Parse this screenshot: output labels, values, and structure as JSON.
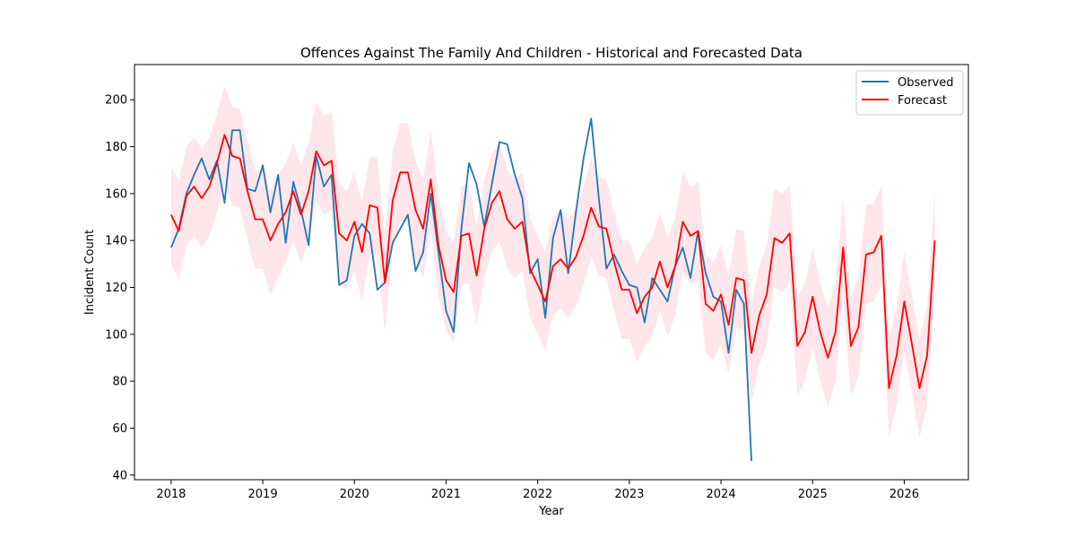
{
  "chart_data": {
    "type": "line",
    "title": "Offences Against The Family And Children - Historical and Forecasted Data",
    "xlabel": "Year",
    "ylabel": "Incident Count",
    "xlim": [
      2017.6,
      2026.7
    ],
    "ylim": [
      38,
      215
    ],
    "x_ticks": [
      2018,
      2019,
      2020,
      2021,
      2022,
      2023,
      2024,
      2025,
      2026
    ],
    "x_tick_labels": [
      "2018",
      "2019",
      "2020",
      "2021",
      "2022",
      "2023",
      "2024",
      "2025",
      "2026"
    ],
    "y_ticks": [
      40,
      60,
      80,
      100,
      120,
      140,
      160,
      180,
      200
    ],
    "y_tick_labels": [
      "40",
      "60",
      "80",
      "100",
      "120",
      "140",
      "160",
      "180",
      "200"
    ],
    "grid": false,
    "legend": "top-right",
    "colors": {
      "observed": "#1f77b4",
      "forecast": "#ff0000",
      "band": "#ffc0cb"
    },
    "series": [
      {
        "name": "Observed",
        "color": "#1f77b4",
        "x": [
          2018.0,
          2018.083,
          2018.167,
          2018.25,
          2018.333,
          2018.417,
          2018.5,
          2018.583,
          2018.667,
          2018.75,
          2018.833,
          2018.917,
          2019.0,
          2019.083,
          2019.167,
          2019.25,
          2019.333,
          2019.417,
          2019.5,
          2019.583,
          2019.667,
          2019.75,
          2019.833,
          2019.917,
          2020.0,
          2020.083,
          2020.167,
          2020.25,
          2020.333,
          2020.417,
          2020.5,
          2020.583,
          2020.667,
          2020.75,
          2020.833,
          2020.917,
          2021.0,
          2021.083,
          2021.167,
          2021.25,
          2021.333,
          2021.417,
          2021.5,
          2021.583,
          2021.667,
          2021.75,
          2021.833,
          2021.917,
          2022.0,
          2022.083,
          2022.167,
          2022.25,
          2022.333,
          2022.417,
          2022.5,
          2022.583,
          2022.667,
          2022.75,
          2022.833,
          2022.917,
          2023.0,
          2023.083,
          2023.167,
          2023.25,
          2023.333,
          2023.417,
          2023.5,
          2023.583,
          2023.667,
          2023.75,
          2023.833,
          2023.917,
          2024.0,
          2024.083,
          2024.167,
          2024.25,
          2024.333
        ],
        "y": [
          137,
          145,
          160,
          168,
          175,
          166,
          174,
          156,
          187,
          187,
          162,
          161,
          172,
          152,
          168,
          139,
          165,
          153,
          138,
          176,
          163,
          168,
          121,
          123,
          142,
          147,
          143,
          119,
          122,
          139,
          145,
          151,
          127,
          135,
          160,
          135,
          110,
          101,
          145,
          173,
          164,
          146,
          164,
          182,
          181,
          168,
          158,
          126,
          132,
          107,
          141,
          153,
          126,
          152,
          175,
          192,
          158,
          128,
          134,
          127,
          121,
          120,
          105,
          124,
          119,
          114,
          129,
          137,
          124,
          144,
          126,
          116,
          114,
          92,
          119,
          113,
          46
        ]
      },
      {
        "name": "Forecast",
        "color": "#ff0000",
        "x": [
          2018.0,
          2018.083,
          2018.167,
          2018.25,
          2018.333,
          2018.417,
          2018.5,
          2018.583,
          2018.667,
          2018.75,
          2018.833,
          2018.917,
          2019.0,
          2019.083,
          2019.167,
          2019.25,
          2019.333,
          2019.417,
          2019.5,
          2019.583,
          2019.667,
          2019.75,
          2019.833,
          2019.917,
          2020.0,
          2020.083,
          2020.167,
          2020.25,
          2020.333,
          2020.417,
          2020.5,
          2020.583,
          2020.667,
          2020.75,
          2020.833,
          2020.917,
          2021.0,
          2021.083,
          2021.167,
          2021.25,
          2021.333,
          2021.417,
          2021.5,
          2021.583,
          2021.667,
          2021.75,
          2021.833,
          2021.917,
          2022.0,
          2022.083,
          2022.167,
          2022.25,
          2022.333,
          2022.417,
          2022.5,
          2022.583,
          2022.667,
          2022.75,
          2022.833,
          2022.917,
          2023.0,
          2023.083,
          2023.167,
          2023.25,
          2023.333,
          2023.417,
          2023.5,
          2023.583,
          2023.667,
          2023.75,
          2023.833,
          2023.917,
          2024.0,
          2024.083,
          2024.167,
          2024.25,
          2024.333,
          2024.417,
          2024.5,
          2024.583,
          2024.667,
          2024.75,
          2024.833,
          2024.917,
          2025.0,
          2025.083,
          2025.167,
          2025.25,
          2025.333,
          2025.417,
          2025.5,
          2025.583,
          2025.667,
          2025.75,
          2025.833,
          2025.917,
          2026.0,
          2026.083,
          2026.167,
          2026.25,
          2026.333
        ],
        "y": [
          151,
          144,
          159,
          163,
          158,
          163,
          173,
          185,
          176,
          175,
          161,
          149,
          149,
          140,
          147,
          152,
          161,
          151,
          161,
          178,
          172,
          174,
          143,
          140,
          148,
          135,
          155,
          154,
          122,
          157,
          169,
          169,
          153,
          145,
          166,
          138,
          123,
          118,
          142,
          143,
          125,
          145,
          156,
          161,
          149,
          145,
          148,
          128,
          121,
          114,
          129,
          132,
          128,
          133,
          142,
          154,
          146,
          145,
          131,
          119,
          119,
          109,
          116,
          120,
          131,
          120,
          129,
          148,
          142,
          144,
          113,
          110,
          117,
          104,
          124,
          123,
          92,
          108,
          117,
          141,
          139,
          143,
          95,
          101,
          116,
          101,
          90,
          101,
          137,
          95,
          103,
          134,
          135,
          142,
          77,
          91,
          114,
          96,
          77,
          91,
          140
        ]
      }
    ],
    "band": {
      "lower": [
        130,
        123,
        138,
        142,
        137,
        142,
        152,
        164,
        155,
        154,
        140,
        128,
        128,
        117,
        124,
        131,
        140,
        130,
        140,
        157,
        151,
        153,
        122,
        119,
        127,
        114,
        134,
        133,
        101,
        136,
        148,
        148,
        132,
        124,
        145,
        117,
        102,
        97,
        121,
        122,
        104,
        124,
        135,
        140,
        128,
        124,
        127,
        107,
        100,
        93,
        108,
        111,
        107,
        112,
        121,
        133,
        125,
        124,
        110,
        98,
        98,
        88,
        95,
        99,
        110,
        99,
        108,
        127,
        121,
        123,
        92,
        89,
        96,
        83,
        103,
        102,
        71,
        87,
        96,
        120,
        118,
        122,
        74,
        80,
        95,
        80,
        69,
        80,
        116,
        74,
        82,
        113,
        114,
        121,
        56,
        70,
        93,
        75,
        56,
        70,
        119
      ],
      "upper": [
        172,
        165,
        180,
        184,
        179,
        184,
        194,
        206,
        197,
        196,
        182,
        170,
        170,
        161,
        168,
        173,
        182,
        172,
        182,
        199,
        193,
        195,
        164,
        161,
        169,
        156,
        176,
        175,
        143,
        178,
        190,
        190,
        174,
        166,
        187,
        159,
        144,
        139,
        163,
        164,
        146,
        166,
        177,
        182,
        170,
        166,
        169,
        149,
        142,
        135,
        150,
        153,
        149,
        154,
        163,
        175,
        167,
        166,
        152,
        140,
        140,
        130,
        137,
        141,
        152,
        141,
        150,
        169,
        163,
        165,
        134,
        131,
        138,
        125,
        145,
        144,
        113,
        129,
        138,
        162,
        160,
        164,
        116,
        122,
        137,
        122,
        111,
        122,
        158,
        116,
        124,
        155,
        156,
        163,
        98,
        112,
        135,
        117,
        98,
        112,
        161
      ]
    }
  }
}
